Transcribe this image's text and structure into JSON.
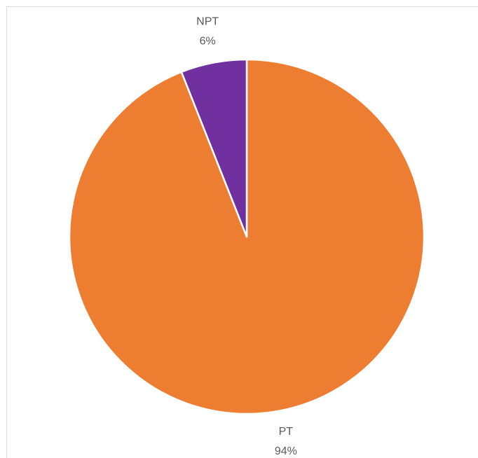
{
  "chart_data": {
    "type": "pie",
    "categories": [
      "PT",
      "NPT"
    ],
    "values": [
      94,
      6
    ],
    "value_labels": [
      "94%",
      "6%"
    ],
    "colors": [
      "#ed7d31",
      "#7030a0"
    ]
  }
}
